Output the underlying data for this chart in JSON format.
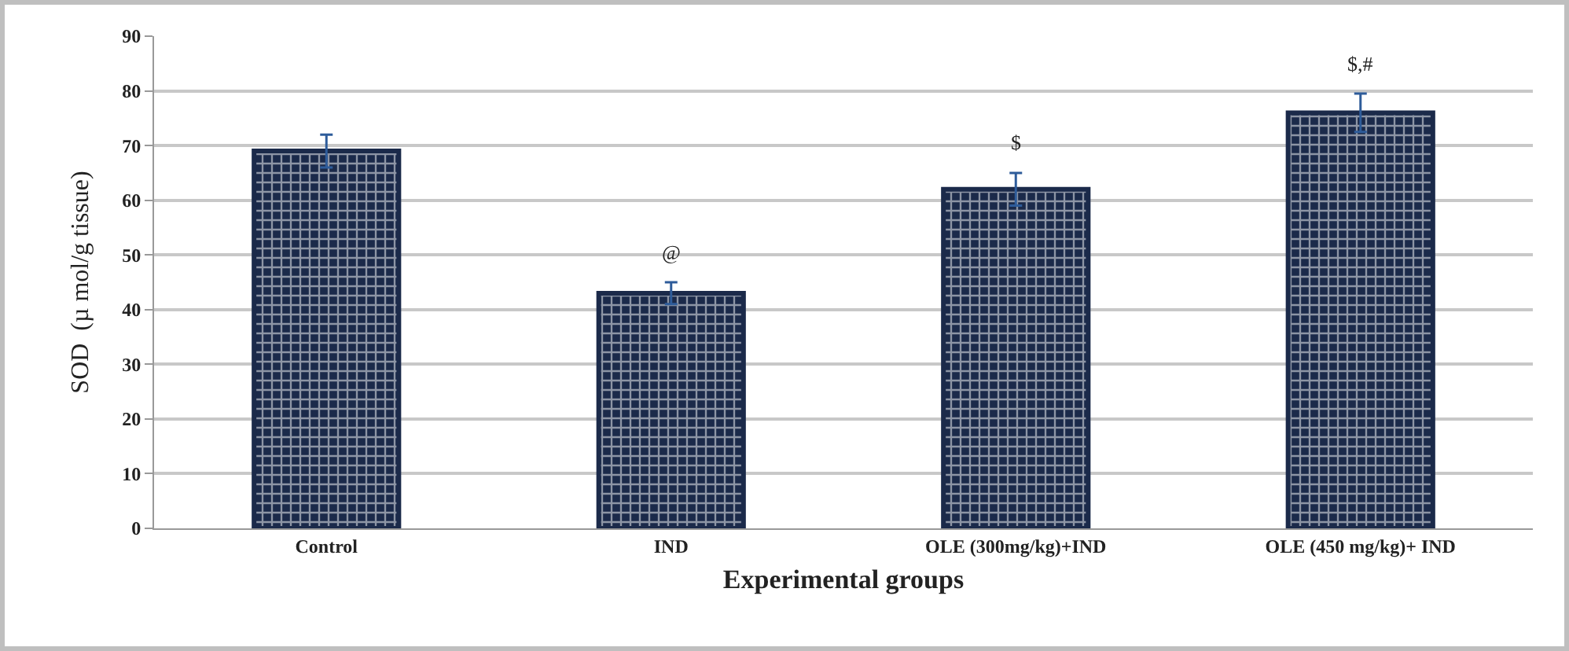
{
  "chart_data": {
    "type": "bar",
    "xlabel": "Experimental groups",
    "ylabel": "SOD  (µ mol/g tissue)",
    "categories": [
      "Control",
      "IND",
      "OLE (300mg/kg)+IND",
      "OLE (450 mg/kg)+ IND"
    ],
    "values": [
      69,
      43,
      62,
      76
    ],
    "errors": [
      3,
      2,
      3,
      3.5
    ],
    "color": "#1b2a4a",
    "ylim": [
      0,
      90
    ],
    "yticks": [
      0,
      10,
      20,
      30,
      40,
      50,
      60,
      70,
      80,
      90
    ],
    "grid": "y",
    "legend": false,
    "annotations": [
      {
        "text": "@",
        "x": "IND",
        "y": 45
      },
      {
        "text": "$",
        "x": "OLE (300mg/kg)+IND",
        "y": 65
      },
      {
        "text": "$,#",
        "x": "OLE (450 mg/kg)+ IND",
        "y": 79.5
      }
    ]
  }
}
